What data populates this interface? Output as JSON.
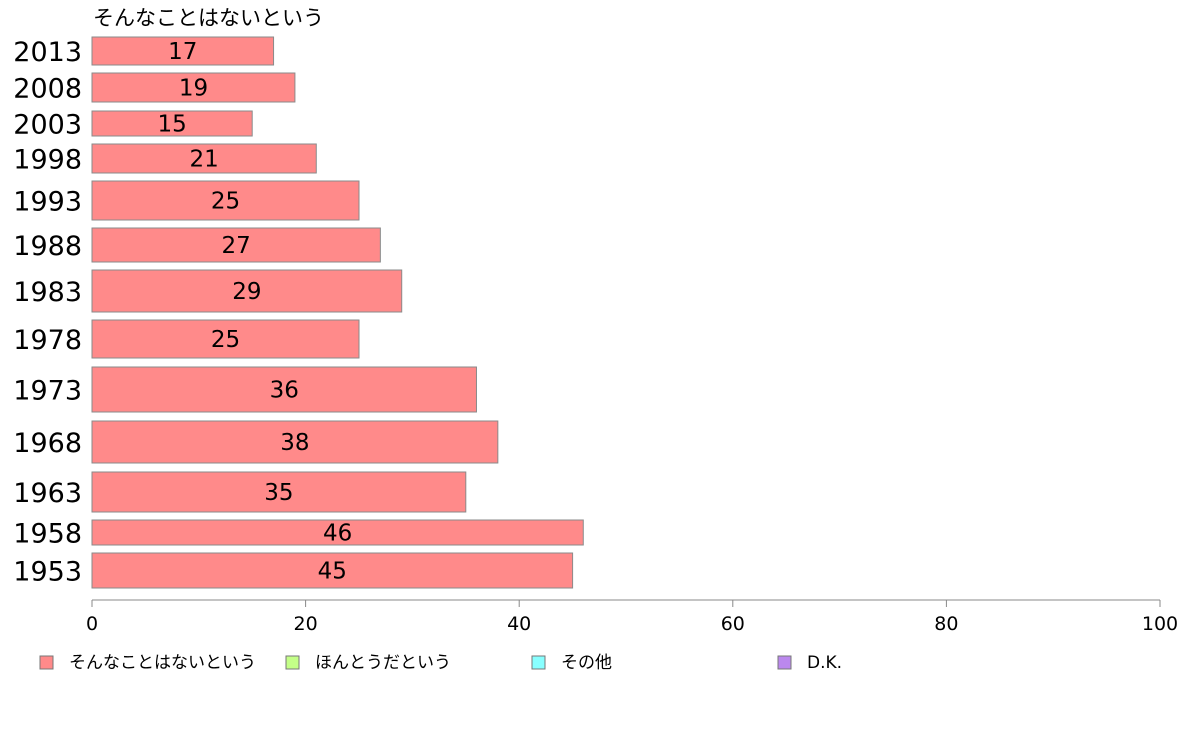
{
  "chart_data": {
    "type": "bar",
    "orientation": "horizontal",
    "title": "そんなことはないという",
    "categories": [
      "2013",
      "2008",
      "2003",
      "1998",
      "1993",
      "1988",
      "1983",
      "1978",
      "1973",
      "1968",
      "1963",
      "1958",
      "1953"
    ],
    "series": [
      {
        "name": "そんなことはないという",
        "values": [
          17,
          19,
          15,
          21,
          25,
          27,
          29,
          25,
          36,
          38,
          35,
          46,
          45
        ],
        "color": "#ff8a8a"
      }
    ],
    "xlim": [
      0,
      100
    ],
    "xticks": [
      0,
      20,
      40,
      60,
      80,
      100
    ],
    "grid": false,
    "legend": {
      "placement": "bottom",
      "items": [
        {
          "name": "そんなことはないという",
          "color": "#ff8a8a"
        },
        {
          "name": "ほんとうだという",
          "color": "#c4ff88"
        },
        {
          "name": "その他",
          "color": "#88ffff"
        },
        {
          "name": "D.K.",
          "color": "#bb88ee"
        }
      ]
    }
  }
}
